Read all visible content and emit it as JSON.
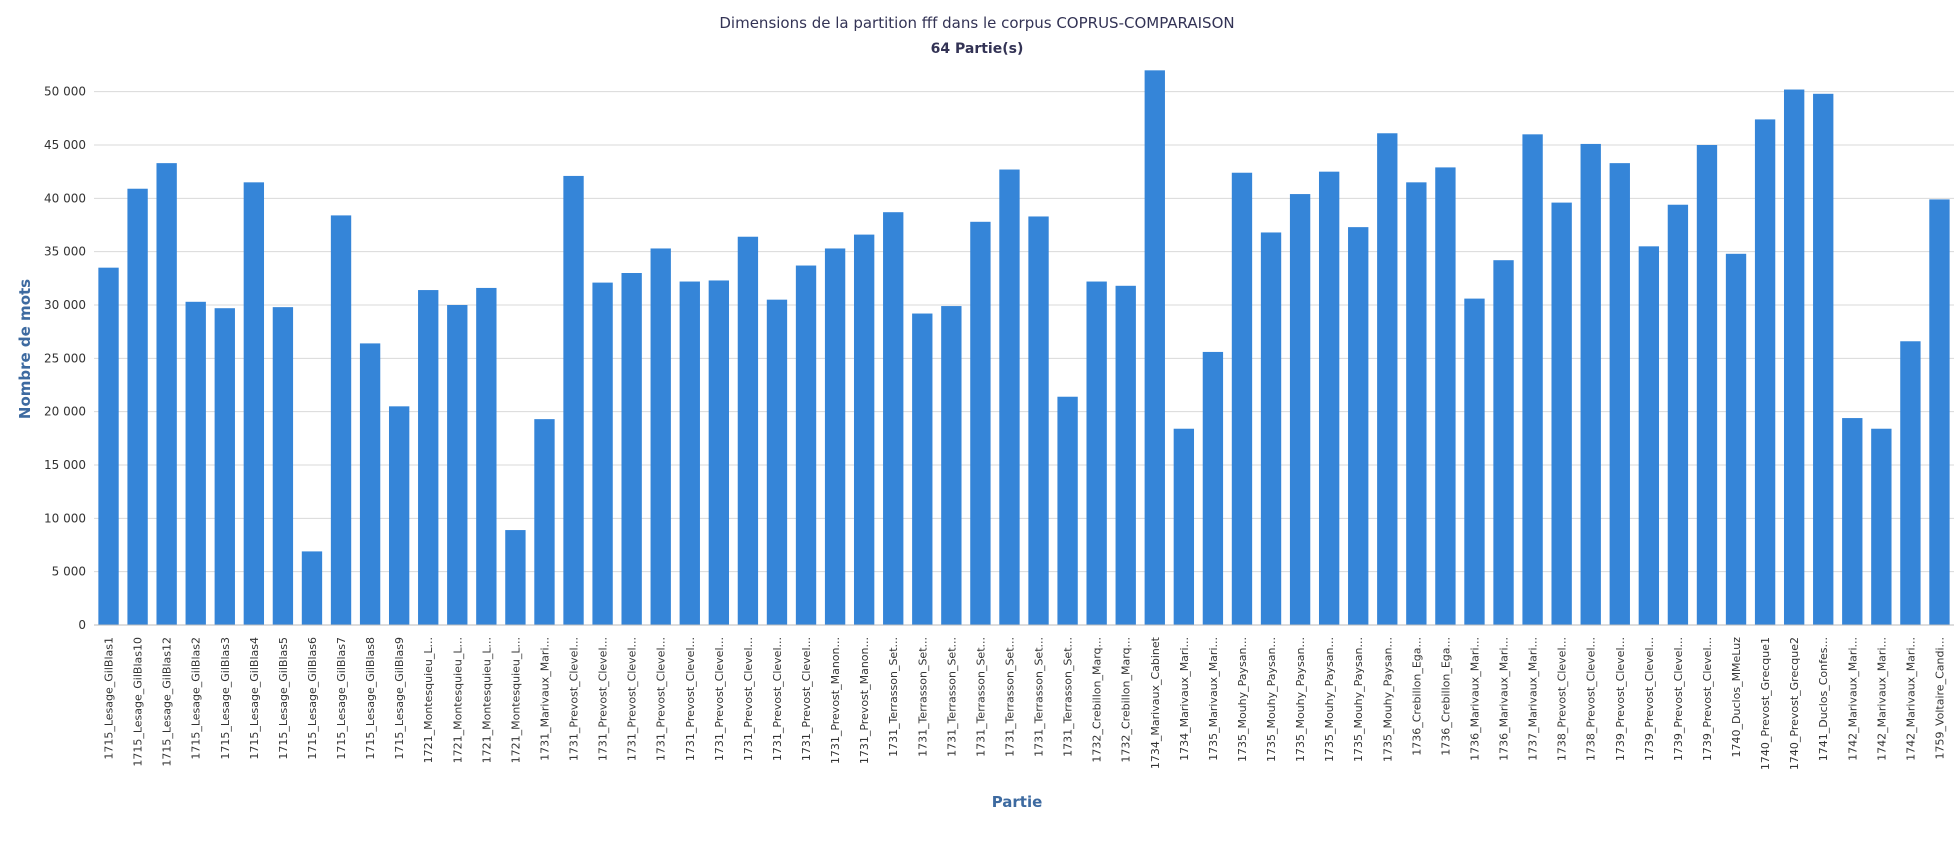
{
  "chart_data": {
    "type": "bar",
    "title": "Dimensions de la partition fff dans le corpus COPRUS-COMPARAISON",
    "subtitle": "64 Partie(s)",
    "xlabel": "Partie",
    "ylabel": "Nombre de mots",
    "ylim": [
      0,
      52500
    ],
    "yticks": [
      0,
      5000,
      10000,
      15000,
      20000,
      25000,
      30000,
      35000,
      40000,
      45000,
      50000
    ],
    "ytick_labels": [
      "0",
      "5 000",
      "10 000",
      "15 000",
      "20 000",
      "25 000",
      "30 000",
      "35 000",
      "40 000",
      "45 000",
      "50 000"
    ],
    "grid": true,
    "legend": "none",
    "bar_color": "#3585d8",
    "categories": [
      "1715_Lesage_GilBlas1",
      "1715_Lesage_GilBlas10",
      "1715_Lesage_GilBlas12",
      "1715_Lesage_GilBlas2",
      "1715_Lesage_GilBlas3",
      "1715_Lesage_GilBlas4",
      "1715_Lesage_GilBlas5",
      "1715_Lesage_GilBlas6",
      "1715_Lesage_GilBlas7",
      "1715_Lesage_GilBlas8",
      "1715_Lesage_GilBlas9",
      "1721_Montesquieu_L...",
      "1721_Montesquieu_L...",
      "1721_Montesquieu_L...",
      "1721_Montesquieu_L...",
      "1731_Marivaux_Mari...",
      "1731_Prevost_Clevel...",
      "1731_Prevost_Clevel...",
      "1731_Prevost_Clevel...",
      "1731_Prevost_Clevel...",
      "1731_Prevost_Clevel...",
      "1731_Prevost_Clevel...",
      "1731_Prevost_Clevel...",
      "1731_Prevost_Clevel...",
      "1731_Prevost_Clevel...",
      "1731_Prevost_Manon...",
      "1731_Prevost_Manon...",
      "1731_Terrasson_Set...",
      "1731_Terrasson_Set...",
      "1731_Terrasson_Set...",
      "1731_Terrasson_Set...",
      "1731_Terrasson_Set...",
      "1731_Terrasson_Set...",
      "1731_Terrasson_Set...",
      "1732_Crebillon_Marq...",
      "1732_Crebillon_Marq...",
      "1734_Marivaux_Cabinet",
      "1734_Marivaux_Mari...",
      "1735_Marivaux_Mari...",
      "1735_Mouhy_Paysan...",
      "1735_Mouhy_Paysan...",
      "1735_Mouhy_Paysan...",
      "1735_Mouhy_Paysan...",
      "1735_Mouhy_Paysan...",
      "1735_Mouhy_Paysan...",
      "1736_Crebillon_Ega...",
      "1736_Crebillon_Ega...",
      "1736_Marivaux_Mari...",
      "1736_Marivaux_Mari...",
      "1737_Marivaux_Mari...",
      "1738_Prevost_Clevel...",
      "1738_Prevost_Clevel...",
      "1739_Prevost_Clevel...",
      "1739_Prevost_Clevel...",
      "1739_Prevost_Clevel...",
      "1739_Prevost_Clevel...",
      "1740_Duclos_MMeLuz",
      "1740_Prevost_Grecque1",
      "1740_Prevost_Grecque2",
      "1741_Duclos_Confes...",
      "1742_Marivaux_Mari...",
      "1742_Marivaux_Mari...",
      "1742_Marivaux_Mari...",
      "1759_Voltaire_Candi..."
    ],
    "values": [
      33500,
      40900,
      43300,
      30300,
      29700,
      41500,
      29800,
      6900,
      38400,
      26400,
      20500,
      31400,
      30000,
      31600,
      8900,
      19300,
      42100,
      32100,
      33000,
      35300,
      32200,
      32300,
      36400,
      30500,
      33700,
      35300,
      36600,
      38700,
      29200,
      29900,
      37800,
      42700,
      38300,
      21400,
      32200,
      31800,
      52000,
      18400,
      25600,
      42400,
      36800,
      40400,
      42500,
      37300,
      46100,
      41500,
      42900,
      30600,
      34200,
      46000,
      39600,
      45100,
      43300,
      35500,
      39400,
      45000,
      34800,
      47400,
      50200,
      49800,
      19400,
      18400,
      26600,
      39900
    ]
  }
}
